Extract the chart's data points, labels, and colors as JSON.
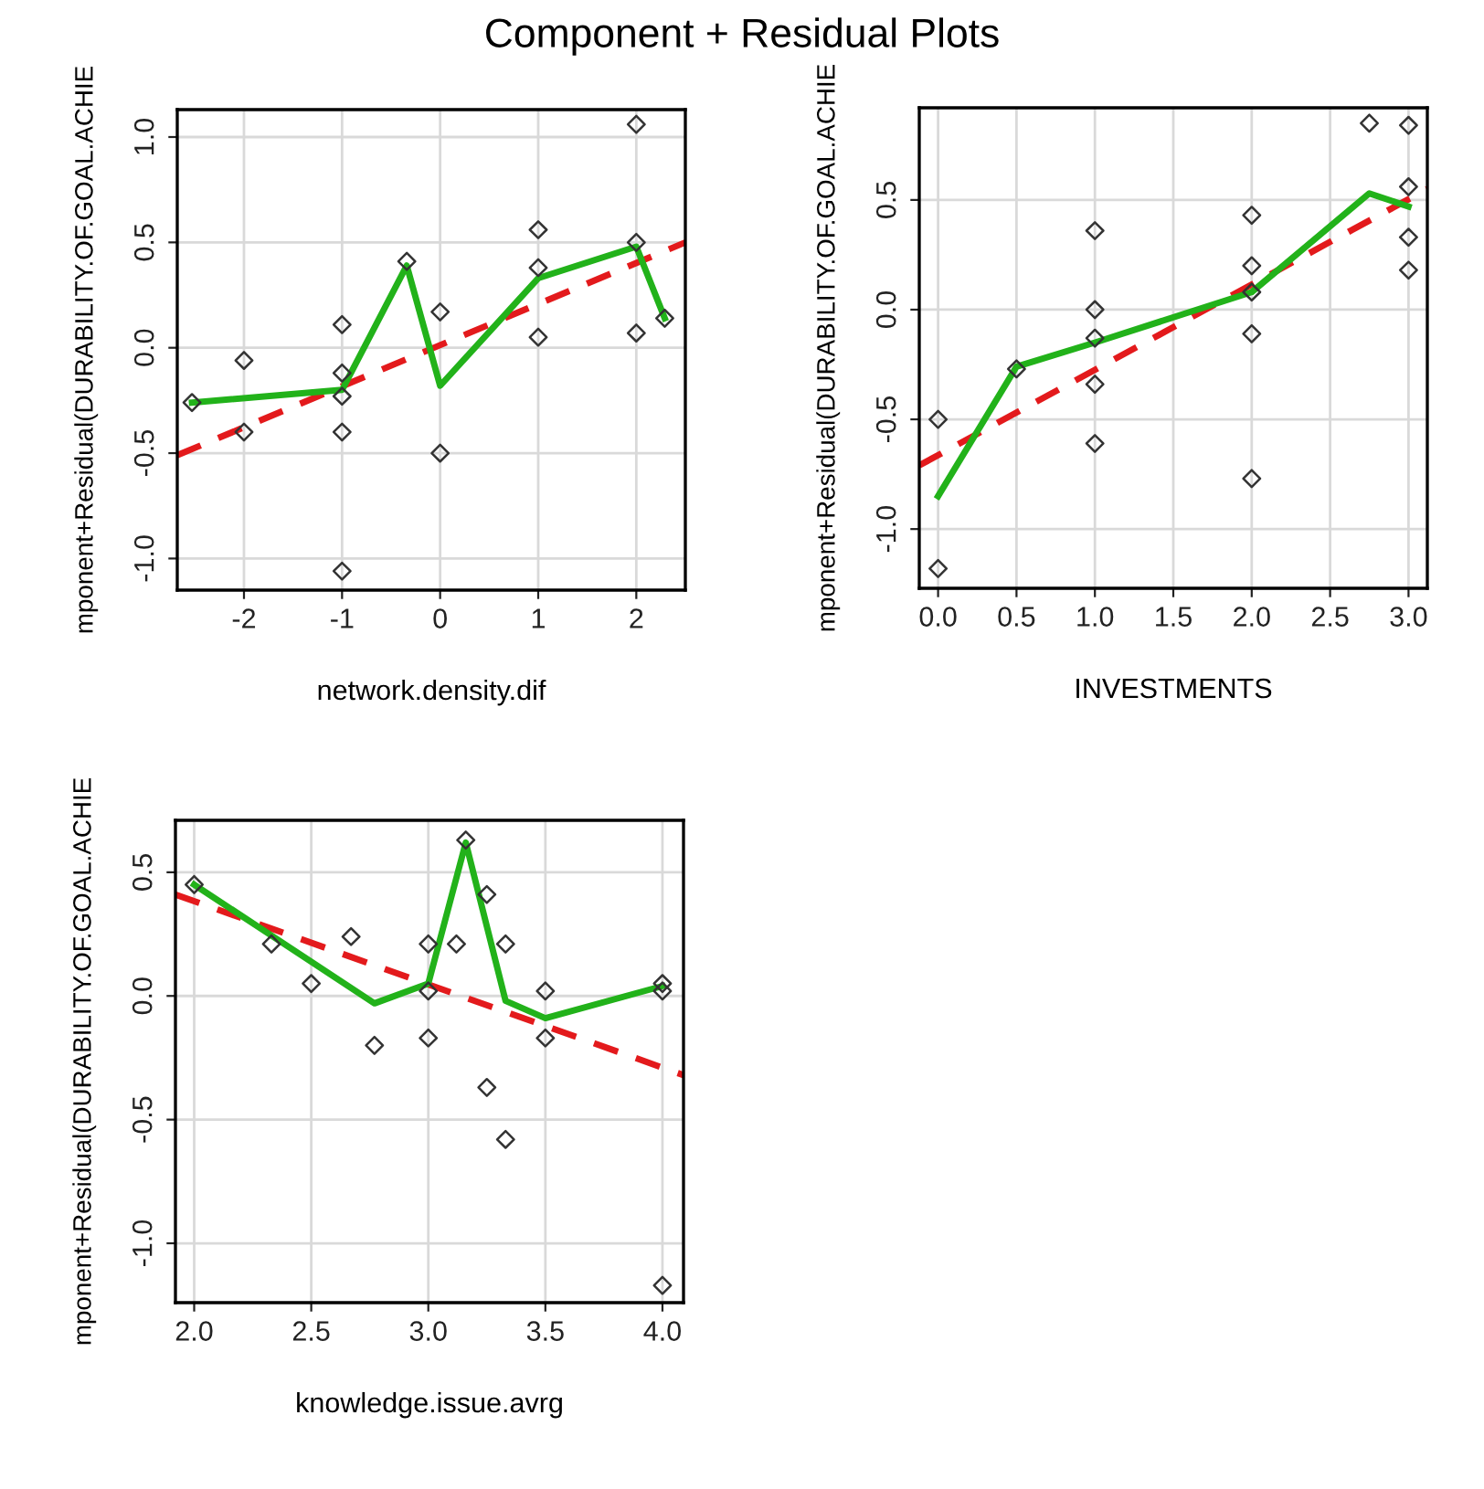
{
  "chart_data": [
    {
      "type": "scatter",
      "title": "Component + Residual Plots",
      "xlabel": "network.density.dif",
      "ylabel": "mponent+Residual(DURABILITY.OF.GOAL.ACHIE",
      "xlim": [
        -2.68,
        2.5
      ],
      "ylim": [
        -1.15,
        1.13
      ],
      "xticks": [
        -2,
        -1,
        0,
        1,
        2
      ],
      "yticks": [
        {
          "value": -1,
          "label": "-1.0"
        },
        {
          "value": -0.5,
          "label": "-0.5"
        },
        {
          "value": 0,
          "label": "0.0"
        },
        {
          "value": 0.5,
          "label": "0.5"
        },
        {
          "value": 1,
          "label": "1.0"
        }
      ],
      "grid": true,
      "series": [
        {
          "type": "scatter",
          "marker": "diamond",
          "color": "#333333",
          "x": [
            -2.53,
            -2,
            -2,
            -1,
            -1,
            -1,
            -1,
            -1,
            -0.34,
            0,
            0,
            1,
            1,
            1,
            2,
            2,
            2,
            2.29
          ],
          "values": [
            -0.26,
            -0.06,
            -0.4,
            0.11,
            -0.12,
            -0.23,
            -0.4,
            -1.06,
            0.41,
            0.17,
            -0.5,
            0.56,
            0.38,
            0.05,
            1.06,
            0.5,
            0.07,
            0.14
          ]
        },
        {
          "type": "line",
          "line_style": "dashed",
          "color": "#e31a1c",
          "x": [
            -2.68,
            2.5
          ],
          "values": [
            -0.51,
            0.5
          ]
        },
        {
          "type": "line",
          "line_style": "solid",
          "color": "#22b21a",
          "x": [
            -2.53,
            -1,
            -0.34,
            0,
            1,
            2,
            2.29
          ],
          "values": [
            -0.26,
            -0.2,
            0.39,
            -0.18,
            0.33,
            0.48,
            0.14
          ]
        }
      ]
    },
    {
      "type": "scatter",
      "xlabel": "INVESTMENTS",
      "ylabel": "mponent+Residual(DURABILITY.OF.GOAL.ACHIE",
      "xlim": [
        -0.12,
        3.12
      ],
      "ylim": [
        -1.27,
        0.92
      ],
      "xticks": [
        {
          "value": 0,
          "label": "0.0"
        },
        {
          "value": 0.5,
          "label": "0.5"
        },
        {
          "value": 1,
          "label": "1.0"
        },
        {
          "value": 1.5,
          "label": "1.5"
        },
        {
          "value": 2,
          "label": "2.0"
        },
        {
          "value": 2.5,
          "label": "2.5"
        },
        {
          "value": 3,
          "label": "3.0"
        }
      ],
      "yticks": [
        {
          "value": -1,
          "label": "-1.0"
        },
        {
          "value": -0.5,
          "label": "-0.5"
        },
        {
          "value": 0,
          "label": "0.0"
        },
        {
          "value": 0.5,
          "label": "0.5"
        }
      ],
      "grid": true,
      "series": [
        {
          "type": "scatter",
          "marker": "diamond",
          "color": "#333333",
          "x": [
            0,
            0,
            0.5,
            1,
            1,
            1,
            1,
            1,
            2,
            2,
            2,
            2,
            2,
            2.75,
            3,
            3,
            3,
            3
          ],
          "values": [
            -0.5,
            -1.18,
            -0.27,
            0.36,
            0.0,
            -0.13,
            -0.34,
            -0.61,
            0.43,
            0.2,
            0.08,
            -0.11,
            -0.77,
            0.85,
            0.84,
            0.56,
            0.33,
            0.18
          ]
        },
        {
          "type": "line",
          "line_style": "dashed",
          "color": "#e31a1c",
          "x": [
            -0.12,
            3.12
          ],
          "values": [
            -0.71,
            0.55
          ]
        },
        {
          "type": "line",
          "line_style": "solid",
          "color": "#22b21a",
          "x": [
            0,
            0.5,
            1,
            2,
            2.75,
            3
          ],
          "values": [
            -0.85,
            -0.26,
            -0.15,
            0.08,
            0.53,
            0.47
          ]
        }
      ]
    },
    {
      "type": "scatter",
      "xlabel": "knowledge.issue.avrg",
      "ylabel": "mponent+Residual(DURABILITY.OF.GOAL.ACHIE",
      "xlim": [
        1.92,
        4.09
      ],
      "ylim": [
        -1.24,
        0.71
      ],
      "xticks": [
        {
          "value": 2,
          "label": "2.0"
        },
        {
          "value": 2.5,
          "label": "2.5"
        },
        {
          "value": 3,
          "label": "3.0"
        },
        {
          "value": 3.5,
          "label": "3.5"
        },
        {
          "value": 4,
          "label": "4.0"
        }
      ],
      "yticks": [
        {
          "value": -1,
          "label": "-1.0"
        },
        {
          "value": -0.5,
          "label": "-0.5"
        },
        {
          "value": 0,
          "label": "0.0"
        },
        {
          "value": 0.5,
          "label": "0.5"
        }
      ],
      "grid": true,
      "series": [
        {
          "type": "scatter",
          "marker": "diamond",
          "color": "#333333",
          "x": [
            2.0,
            2.33,
            2.5,
            2.67,
            2.77,
            3.0,
            3.0,
            3.0,
            3.12,
            3.16,
            3.25,
            3.25,
            3.33,
            3.33,
            3.5,
            3.5,
            4.0,
            4.0,
            4.0
          ],
          "values": [
            0.45,
            0.21,
            0.05,
            0.24,
            -0.2,
            0.21,
            0.02,
            -0.17,
            0.21,
            0.63,
            0.41,
            -0.37,
            0.21,
            -0.58,
            0.02,
            -0.17,
            0.05,
            0.02,
            -1.17
          ]
        },
        {
          "type": "line",
          "line_style": "dashed",
          "color": "#e31a1c",
          "x": [
            1.92,
            4.09
          ],
          "values": [
            0.41,
            -0.32
          ]
        },
        {
          "type": "line",
          "line_style": "solid",
          "color": "#22b21a",
          "x": [
            2.0,
            2.77,
            3.0,
            3.16,
            3.33,
            3.5,
            4.0
          ],
          "values": [
            0.45,
            -0.03,
            0.05,
            0.62,
            -0.02,
            -0.09,
            0.04
          ]
        }
      ]
    }
  ]
}
